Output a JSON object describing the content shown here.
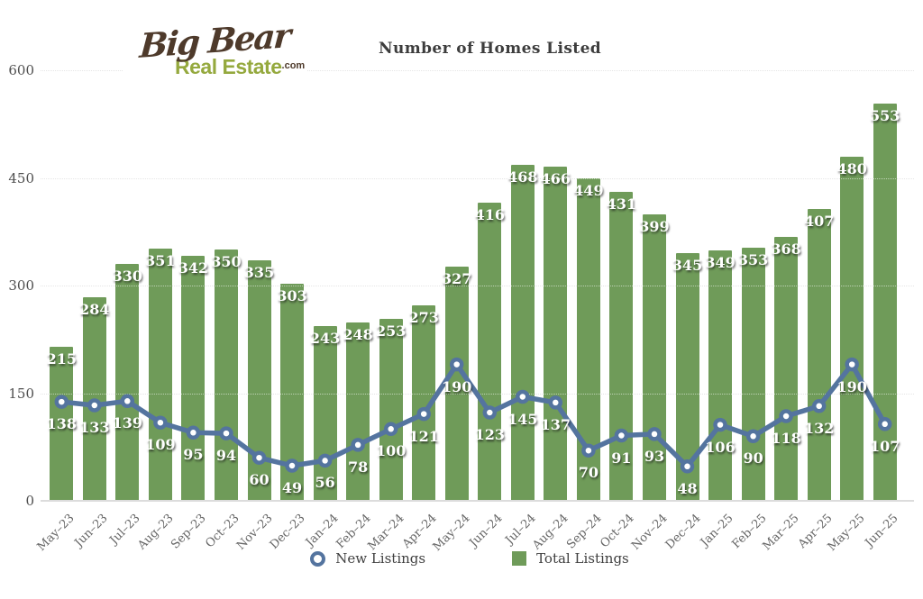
{
  "logo": {
    "brand_script": "Big Bear",
    "brand_sub": "Real Estate",
    "brand_suffix": ".com"
  },
  "header": {
    "title": "Number of Homes Listed"
  },
  "legend": {
    "new_listings_label": "New Listings",
    "total_listings_label": "Total Listings"
  },
  "chart_data": {
    "type": "bar",
    "title": "Number of Homes Listed",
    "categories": [
      "May–23",
      "Jun–23",
      "Jul–23",
      "Aug–23",
      "Sep–23",
      "Oct–23",
      "Nov–23",
      "Dec–23",
      "Jan–24",
      "Feb–24",
      "Mar–24",
      "Apr–24",
      "May–24",
      "Jun–24",
      "Jul–24",
      "Aug–24",
      "Sep–24",
      "Oct–24",
      "Nov–24",
      "Dec–24",
      "Jan–25",
      "Feb–25",
      "Mar–25",
      "Apr–25",
      "May–25",
      "Jun–25"
    ],
    "series": [
      {
        "name": "Total Listings",
        "type": "bar",
        "color": "#6f9b59",
        "values": [
          215,
          284,
          330,
          351,
          342,
          350,
          335,
          303,
          243,
          248,
          253,
          273,
          327,
          416,
          468,
          466,
          449,
          431,
          399,
          345,
          349,
          353,
          368,
          407,
          480,
          553
        ]
      },
      {
        "name": "New Listings",
        "type": "line",
        "color": "#54749f",
        "marker": "circle-white-fill",
        "values": [
          138,
          133,
          139,
          109,
          95,
          94,
          60,
          49,
          56,
          78,
          100,
          121,
          190,
          123,
          145,
          137,
          70,
          91,
          93,
          48,
          106,
          90,
          118,
          132,
          190,
          107
        ]
      }
    ],
    "ylim": [
      0,
      600
    ],
    "yticks": [
      0,
      150,
      300,
      450,
      600
    ],
    "grid": "horizontal-dotted",
    "legend_position": "bottom",
    "value_labels": true
  }
}
